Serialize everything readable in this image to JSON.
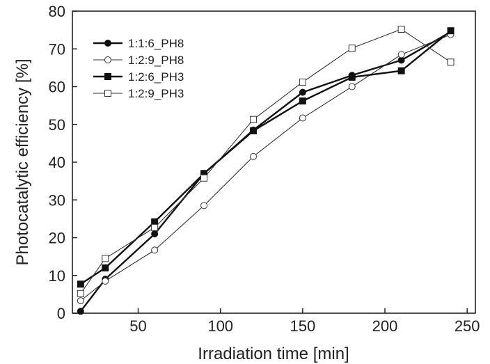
{
  "chart_data": {
    "type": "line",
    "title": "",
    "xlabel": "Irradiation time [min]",
    "ylabel": "Photocatalytic efficiency [%]",
    "xlim": [
      10,
      255
    ],
    "ylim": [
      0,
      80
    ],
    "xticks": [
      50,
      100,
      150,
      200,
      250
    ],
    "yticks": [
      0,
      10,
      20,
      30,
      40,
      50,
      60,
      70,
      80
    ],
    "grid": false,
    "legend_position": "top-left",
    "series": [
      {
        "name": "1:1:6_PH8",
        "marker": "filled-circle",
        "line_width": "thick",
        "x": [
          15,
          30,
          60,
          90,
          120,
          150,
          180,
          210,
          240
        ],
        "y": [
          0.5,
          9,
          21,
          37,
          48.5,
          58.5,
          63,
          67,
          74.5
        ]
      },
      {
        "name": "1:2:9_PH8",
        "marker": "open-circle",
        "line_width": "thin",
        "x": [
          15,
          30,
          60,
          90,
          120,
          150,
          180,
          210,
          240
        ],
        "y": [
          3.3,
          8.5,
          16.7,
          28.5,
          41.5,
          51.7,
          60,
          68.5,
          73.8
        ]
      },
      {
        "name": "1:2:6_PH3",
        "marker": "filled-square",
        "line_width": "thick",
        "x": [
          15,
          30,
          60,
          90,
          120,
          150,
          180,
          210,
          240
        ],
        "y": [
          7.7,
          12,
          24.2,
          37,
          48.3,
          56.2,
          62.5,
          64.2,
          74.8
        ]
      },
      {
        "name": "1:2:9_PH3",
        "marker": "open-square",
        "line_width": "thin",
        "x": [
          15,
          30,
          60,
          90,
          120,
          150,
          180,
          210,
          240
        ],
        "y": [
          5.2,
          14.5,
          22.7,
          35.8,
          51.3,
          61.2,
          70.2,
          75.2,
          66.5
        ]
      }
    ]
  }
}
